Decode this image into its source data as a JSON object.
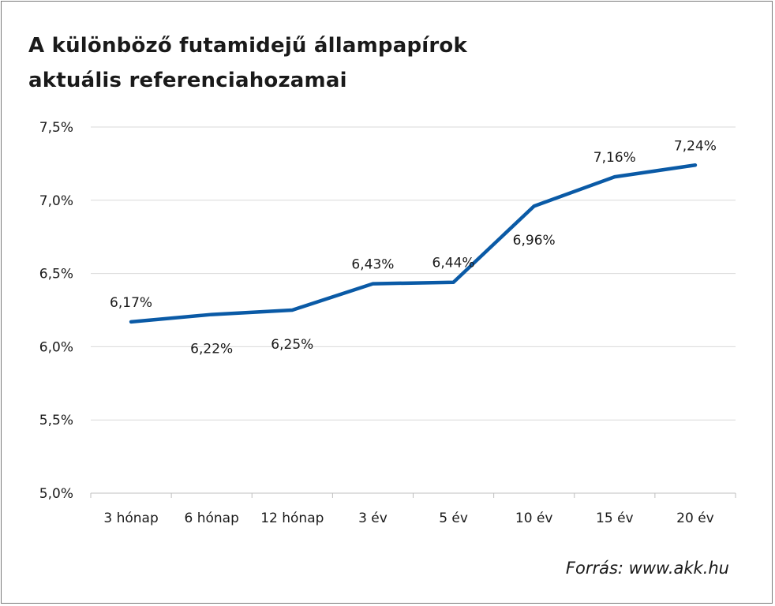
{
  "title_line1": "A különböző futamidejű állampapírok",
  "title_line2": "aktuális referenciahozamai",
  "source": "Forrás: www.akk.hu",
  "colors": {
    "line": "#0a5aa6",
    "grid": "#d9d9d9",
    "text": "#1a1a1a",
    "border": "#7a7a7a"
  },
  "chart_data": {
    "type": "line",
    "title": "A különböző futamidejű állampapírok aktuális referenciahozamai",
    "xlabel": "",
    "ylabel": "",
    "categories": [
      "3 hónap",
      "6 hónap",
      "12 hónap",
      "3 év",
      "5 év",
      "10 év",
      "15 év",
      "20 év"
    ],
    "values": [
      6.17,
      6.22,
      6.25,
      6.43,
      6.44,
      6.96,
      7.16,
      7.24
    ],
    "data_labels": [
      "6,17%",
      "6,22%",
      "6,25%",
      "6,43%",
      "6,44%",
      "6,96%",
      "7,16%",
      "7,24%"
    ],
    "label_positions": [
      "above",
      "below",
      "below",
      "above",
      "above",
      "below",
      "above",
      "above"
    ],
    "ylim": [
      5.0,
      7.5
    ],
    "yticks": [
      5.0,
      5.5,
      6.0,
      6.5,
      7.0,
      7.5
    ],
    "ytick_labels": [
      "5,0%",
      "5,5%",
      "6,0%",
      "6,5%",
      "7,0%",
      "7,5%"
    ],
    "grid": true,
    "legend": "none"
  }
}
